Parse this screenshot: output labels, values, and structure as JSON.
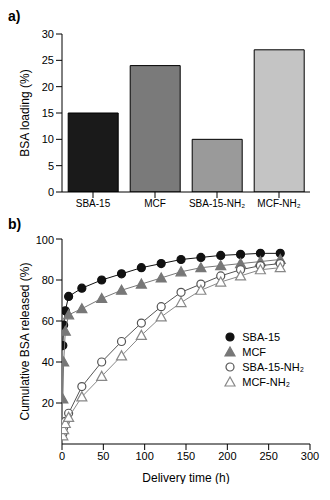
{
  "chart_data": [
    {
      "type": "bar",
      "title": "a)",
      "categories": [
        "SBA-15",
        "MCF",
        "SBA-15-NH₂",
        "MCF-NH₂"
      ],
      "values": [
        15,
        24,
        10,
        27
      ],
      "colors": [
        "#1a1a1a",
        "#7a7a7a",
        "#9a9a9a",
        "#c4c4c4"
      ],
      "y_label": "BSA loading (%)",
      "ylim": [
        0,
        30
      ],
      "yticks": [
        0,
        5,
        10,
        15,
        20,
        25,
        30
      ],
      "grid": false
    },
    {
      "type": "scatter",
      "title": "b)",
      "x_label": "Delivery time (h)",
      "y_label": "Cumulative BSA released (%)",
      "x": [
        1,
        2,
        4,
        8,
        24,
        48,
        72,
        96,
        120,
        144,
        168,
        192,
        216,
        240,
        264
      ],
      "series": [
        {
          "name": "SBA-15",
          "color": "#111111",
          "marker": "circle",
          "line_style": "solid",
          "values": [
            48,
            58,
            65,
            72,
            76,
            80,
            83,
            86,
            88,
            90,
            91,
            92,
            92.5,
            93,
            93
          ]
        },
        {
          "name": "MCF",
          "color": "#777777",
          "marker": "triangle",
          "line_style": "solid",
          "values": [
            22,
            40,
            55,
            63,
            66,
            71,
            75,
            78,
            81,
            84,
            86,
            87,
            88,
            89,
            90
          ]
        },
        {
          "name": "SBA-15-NH₂",
          "color": "#555555",
          "marker": "open_circle",
          "line_style": "solid",
          "values": [
            5,
            8,
            11,
            15,
            28,
            40,
            50,
            59,
            67,
            74,
            78,
            82,
            85,
            87,
            88
          ]
        },
        {
          "name": "MCF-NH₂",
          "color": "#888888",
          "marker": "open_triangle",
          "line_style": "solid",
          "values": [
            4,
            7,
            10,
            13,
            23,
            33,
            43,
            53,
            62,
            69,
            75,
            79,
            82,
            85,
            86
          ]
        }
      ],
      "xlim": [
        0,
        300
      ],
      "xticks": [
        0,
        50,
        100,
        150,
        200,
        250,
        300
      ],
      "ylim": [
        0,
        100
      ],
      "yticks": [
        20,
        40,
        60,
        80,
        100
      ],
      "legend": "right",
      "grid": false
    }
  ]
}
